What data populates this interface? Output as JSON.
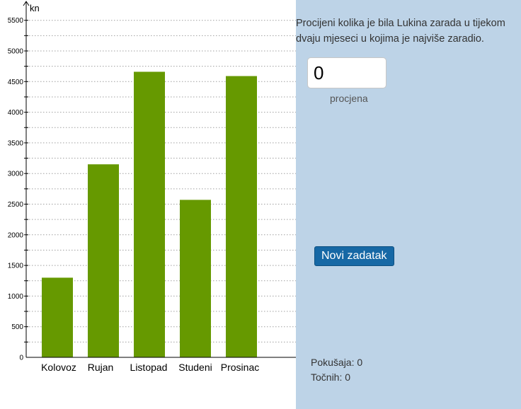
{
  "chart_data": {
    "type": "bar",
    "ylabel": "kn",
    "categories": [
      "Kolovoz",
      "Rujan",
      "Listopad",
      "Studeni",
      "Prosinac"
    ],
    "values": [
      1300,
      3150,
      4660,
      2570,
      4590
    ],
    "ylim": [
      0,
      5600
    ],
    "yticks": [
      0,
      500,
      1000,
      1500,
      2000,
      2500,
      3000,
      3500,
      4000,
      4500,
      5000,
      5500
    ],
    "grid": "dotted horizontal",
    "bar_color": "#669900"
  },
  "panel": {
    "question": "Procijeni kolika je bila Lukina zarada u tijekom dvaju mjeseci u kojima je najviše zaradio.",
    "estimate_value": "0",
    "estimate_caption": "procjena",
    "new_task_label": "Novi zadatak",
    "attempts": "Pokušaja: 0",
    "correct": "Točnih: 0",
    "background_color": "#bdd3e7",
    "button_color": "#1668a5"
  }
}
